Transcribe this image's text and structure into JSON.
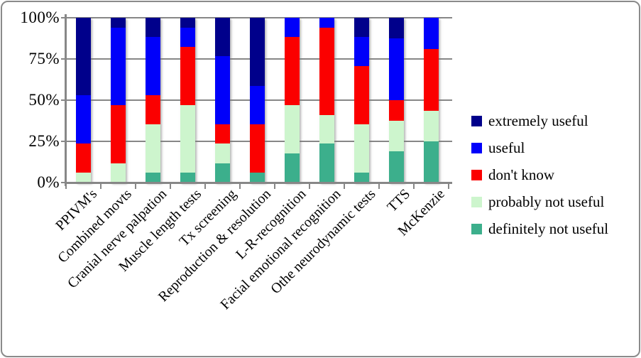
{
  "figure": {
    "background": "#ffffff",
    "border_color": "#8a8a8a",
    "axis_color": "#878787",
    "text_color": "#000000"
  },
  "chart_data": {
    "type": "bar",
    "subtype": "100%-stacked-column",
    "title": "",
    "xlabel": "",
    "ylabel": "",
    "categories": [
      "PPIVM's",
      "Combined movts",
      "Cranial nerve palpation",
      "Muscle length tests",
      "Tx screening",
      "Reproduction & resolution",
      "L-R-recognition",
      "Facial emotional recognition",
      "Othe neurodynamic tests",
      "TTS",
      "McKenzie"
    ],
    "series": [
      {
        "name": "definitely not useful",
        "color": "#3caf8c",
        "values": [
          0,
          0,
          5.9,
          5.9,
          11.8,
          5.9,
          17.6,
          23.5,
          5.9,
          18.8,
          25.0
        ]
      },
      {
        "name": "probably not useful",
        "color": "#cdf5cd",
        "values": [
          5.9,
          11.8,
          29.4,
          41.2,
          11.8,
          0,
          29.4,
          17.6,
          29.4,
          18.8,
          18.8
        ]
      },
      {
        "name": "don't know",
        "color": "#fb0000",
        "values": [
          17.6,
          35.3,
          17.6,
          35.3,
          11.8,
          29.4,
          41.2,
          52.9,
          35.3,
          12.5,
          37.5
        ]
      },
      {
        "name": "useful",
        "color": "#0000fa",
        "values": [
          29.4,
          47.1,
          35.3,
          11.8,
          41.2,
          23.5,
          11.8,
          5.9,
          17.6,
          37.5,
          18.8
        ]
      },
      {
        "name": "extremely useful",
        "color": "#00008b",
        "values": [
          47.1,
          5.9,
          11.8,
          5.9,
          23.5,
          41.2,
          0,
          0,
          11.8,
          12.5,
          0
        ]
      }
    ],
    "stack_order": "bottom-to-top",
    "ylim": [
      0,
      100
    ],
    "yticks": [
      "0%",
      "25%",
      "50%",
      "75%",
      "100%"
    ],
    "grid": true,
    "legend": {
      "position": "right",
      "order_top_to_bottom": [
        "extremely useful",
        "useful",
        "don't know",
        "probably not useful",
        "definitely not useful"
      ]
    }
  }
}
